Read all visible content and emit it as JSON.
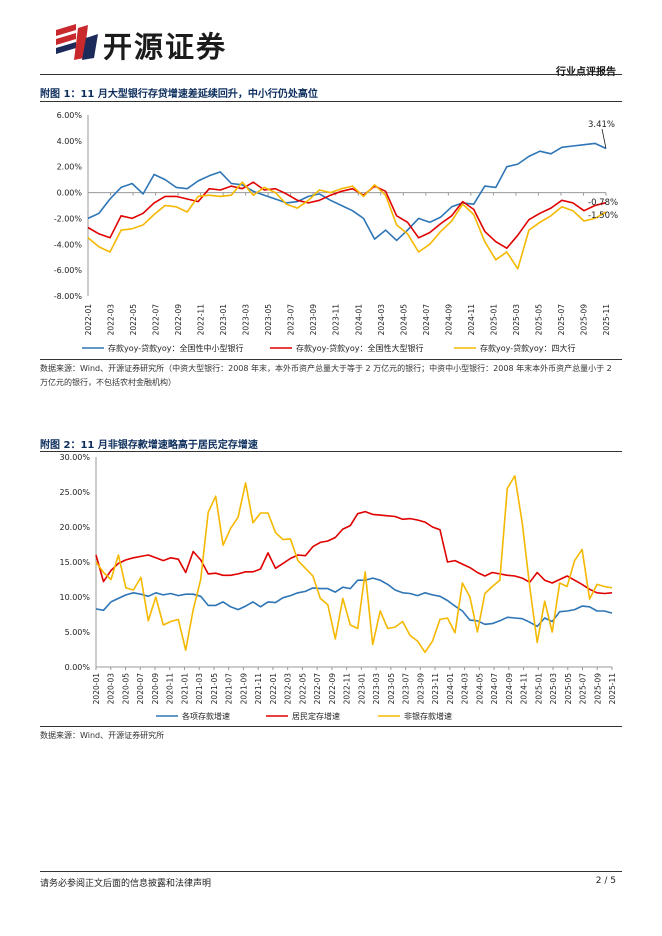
{
  "header": {
    "logo_text": "开源证券",
    "report_type": "行业点评报告"
  },
  "figure1": {
    "title": "附图 1：11 月大型银行存贷增速差延续回升，中小行仍处高位",
    "source": "数据来源：Wind、开源证券研究所（中资大型银行：2008 年末，本外币资产总量大于等于 2 万亿元的银行；中资中小型银行：2008 年末本外币资产总量小于 2 万亿元的银行，不包括农村金融机构）"
  },
  "figure2": {
    "title": "附图 2：11 月非银存款增速略高于居民定存增速",
    "source": "数据来源：Wind、开源证券研究所"
  },
  "footer": {
    "disclaimer": "请务必参阅正文后面的信息披露和法律声明",
    "page": "2 / 5"
  },
  "chart_data": [
    {
      "type": "line",
      "title": "附图 1：11 月大型银行存贷增速差延续回升，中小行仍处高位",
      "ylim": [
        -0.08,
        0.06
      ],
      "yticks": [
        "6.00%",
        "4.00%",
        "2.00%",
        "0.00%",
        "-2.00%",
        "-4.00%",
        "-6.00%",
        "-8.00%"
      ],
      "xtick_labels": [
        "2022-01",
        "2022-03",
        "2022-05",
        "2022-07",
        "2022-09",
        "2022-11",
        "2023-01",
        "2023-03",
        "2023-05",
        "2023-07",
        "2023-09",
        "2023-11",
        "2024-01",
        "2024-03",
        "2024-05",
        "2024-07",
        "2024-09",
        "2024-11",
        "2025-01",
        "2025-03",
        "2025-05",
        "2025-07",
        "2025-09",
        "2025-11"
      ],
      "annotations": [
        "3.41%",
        "-0.78%",
        "-1.50%"
      ],
      "series": [
        {
          "name": "存款yoy-贷款yoy：全国性中小型银行",
          "color": "#2e75b6",
          "values": [
            -2.0,
            -1.6,
            -0.5,
            0.4,
            0.7,
            -0.1,
            1.4,
            1.0,
            0.4,
            0.3,
            0.9,
            1.3,
            1.6,
            0.7,
            0.6,
            0.1,
            -0.2,
            -0.5,
            -0.8,
            -0.7,
            -0.3,
            -0.1,
            -0.6,
            -1.0,
            -1.4,
            -2.0,
            -3.6,
            -2.9,
            -3.7,
            -2.9,
            -2.0,
            -2.3,
            -1.9,
            -1.1,
            -0.8,
            -0.9,
            0.5,
            0.4,
            2.0,
            2.2,
            2.8,
            3.2,
            3.0,
            3.5,
            3.6,
            3.7,
            3.8,
            3.41
          ]
        },
        {
          "name": "存款yoy-贷款yoy：全国性大型银行",
          "color": "#e00000",
          "values": [
            -2.7,
            -3.2,
            -3.5,
            -1.8,
            -2.0,
            -1.6,
            -0.8,
            -0.3,
            -0.3,
            -0.5,
            -0.7,
            0.3,
            0.2,
            0.5,
            0.3,
            0.8,
            0.2,
            0.3,
            -0.1,
            -0.6,
            -0.8,
            -0.6,
            -0.2,
            0.1,
            0.3,
            -0.2,
            0.5,
            0.1,
            -1.8,
            -2.3,
            -3.5,
            -3.1,
            -2.4,
            -1.8,
            -0.7,
            -1.3,
            -3.0,
            -3.8,
            -4.3,
            -3.3,
            -2.1,
            -1.6,
            -1.2,
            -0.6,
            -0.8,
            -1.4,
            -1.0,
            -0.78
          ]
        },
        {
          "name": "存款yoy-贷款yoy：四大行",
          "color": "#f5b800",
          "values": [
            -3.5,
            -4.2,
            -4.6,
            -2.9,
            -2.8,
            -2.5,
            -1.7,
            -1.0,
            -1.1,
            -1.5,
            -0.3,
            -0.2,
            -0.3,
            -0.2,
            0.8,
            -0.2,
            0.4,
            0.0,
            -0.9,
            -1.2,
            -0.6,
            0.2,
            0.0,
            0.3,
            0.5,
            -0.3,
            0.6,
            -0.2,
            -2.5,
            -3.2,
            -4.6,
            -4.0,
            -3.0,
            -2.2,
            -0.9,
            -1.7,
            -3.8,
            -5.2,
            -4.6,
            -5.9,
            -2.9,
            -2.3,
            -1.8,
            -1.1,
            -1.4,
            -2.2,
            -2.0,
            -1.5
          ]
        }
      ]
    },
    {
      "type": "line",
      "title": "附图 2：11 月非银存款增速略高于居民定存增速",
      "ylim": [
        0,
        0.3
      ],
      "yticks": [
        "30.00%",
        "25.00%",
        "20.00%",
        "15.00%",
        "10.00%",
        "5.00%",
        "0.00%"
      ],
      "xtick_labels": [
        "2020-01",
        "2020-03",
        "2020-05",
        "2020-07",
        "2020-09",
        "2020-11",
        "2021-01",
        "2021-03",
        "2021-05",
        "2021-07",
        "2021-09",
        "2021-11",
        "2022-01",
        "2022-03",
        "2022-05",
        "2022-07",
        "2022-09",
        "2022-11",
        "2023-01",
        "2023-03",
        "2023-05",
        "2023-07",
        "2023-09",
        "2023-11",
        "2024-01",
        "2024-03",
        "2024-05",
        "2024-07",
        "2024-09",
        "2024-11",
        "2025-01",
        "2025-03",
        "2025-05",
        "2025-07",
        "2025-09",
        "2025-11"
      ],
      "series": [
        {
          "name": "各项存款增速",
          "color": "#2e75b6",
          "values": [
            8.3,
            8.1,
            9.3,
            9.8,
            10.3,
            10.6,
            10.4,
            10.1,
            10.6,
            10.3,
            10.5,
            10.2,
            10.4,
            10.4,
            10.1,
            8.8,
            8.8,
            9.3,
            8.6,
            8.2,
            8.7,
            9.3,
            8.6,
            9.3,
            9.2,
            9.9,
            10.2,
            10.6,
            10.8,
            11.3,
            11.2,
            11.2,
            10.7,
            11.4,
            11.2,
            12.4,
            12.4,
            12.7,
            12.4,
            11.8,
            11.0,
            10.6,
            10.5,
            10.2,
            10.6,
            10.3,
            10.1,
            9.5,
            8.7,
            8.0,
            6.7,
            6.6,
            6.1,
            6.2,
            6.6,
            7.1,
            7.0,
            6.9,
            6.4,
            5.8,
            7.0,
            6.5,
            7.9,
            8.0,
            8.2,
            8.7,
            8.6,
            8.0,
            8.0,
            7.7
          ]
        },
        {
          "name": "居民定存增速",
          "color": "#e00000",
          "values": [
            16.0,
            12.2,
            13.8,
            14.8,
            15.3,
            15.6,
            15.8,
            16.0,
            15.6,
            15.2,
            15.6,
            15.4,
            13.5,
            16.5,
            15.3,
            13.3,
            13.4,
            13.1,
            13.1,
            13.3,
            13.6,
            13.6,
            14.0,
            16.3,
            14.1,
            14.8,
            15.5,
            16.0,
            15.9,
            17.2,
            17.8,
            18.0,
            18.5,
            19.7,
            20.2,
            21.9,
            22.2,
            21.8,
            21.7,
            21.6,
            21.5,
            21.1,
            21.2,
            21.0,
            20.7,
            20.0,
            19.6,
            15.0,
            15.2,
            14.7,
            14.2,
            13.5,
            13.0,
            13.5,
            13.3,
            13.1,
            13.0,
            12.7,
            12.1,
            13.5,
            12.4,
            12.0,
            12.5,
            13.0,
            12.4,
            11.8,
            11.1,
            10.6,
            10.5,
            10.6
          ]
        },
        {
          "name": "非银存款增速",
          "color": "#f5b800",
          "values": [
            15.0,
            13.5,
            12.5,
            16.0,
            11.3,
            11.0,
            12.8,
            6.6,
            10.0,
            6.0,
            6.5,
            6.8,
            2.4,
            8.2,
            12.5,
            22.1,
            24.4,
            17.4,
            19.8,
            21.4,
            26.3,
            20.6,
            22.0,
            22.0,
            19.2,
            18.2,
            18.3,
            15.2,
            14.1,
            13.0,
            9.8,
            8.9,
            4.0,
            9.8,
            6.0,
            5.5,
            13.6,
            3.2,
            8.0,
            5.5,
            5.7,
            6.5,
            4.5,
            3.7,
            2.1,
            3.7,
            6.8,
            7.0,
            4.9,
            12.0,
            10.0,
            5.0,
            10.5,
            11.5,
            12.4,
            25.5,
            27.3,
            20.5,
            11.5,
            3.5,
            9.4,
            5.0,
            12.0,
            11.5,
            15.2,
            16.8,
            9.7,
            11.8,
            11.5,
            11.3
          ]
        }
      ]
    }
  ]
}
